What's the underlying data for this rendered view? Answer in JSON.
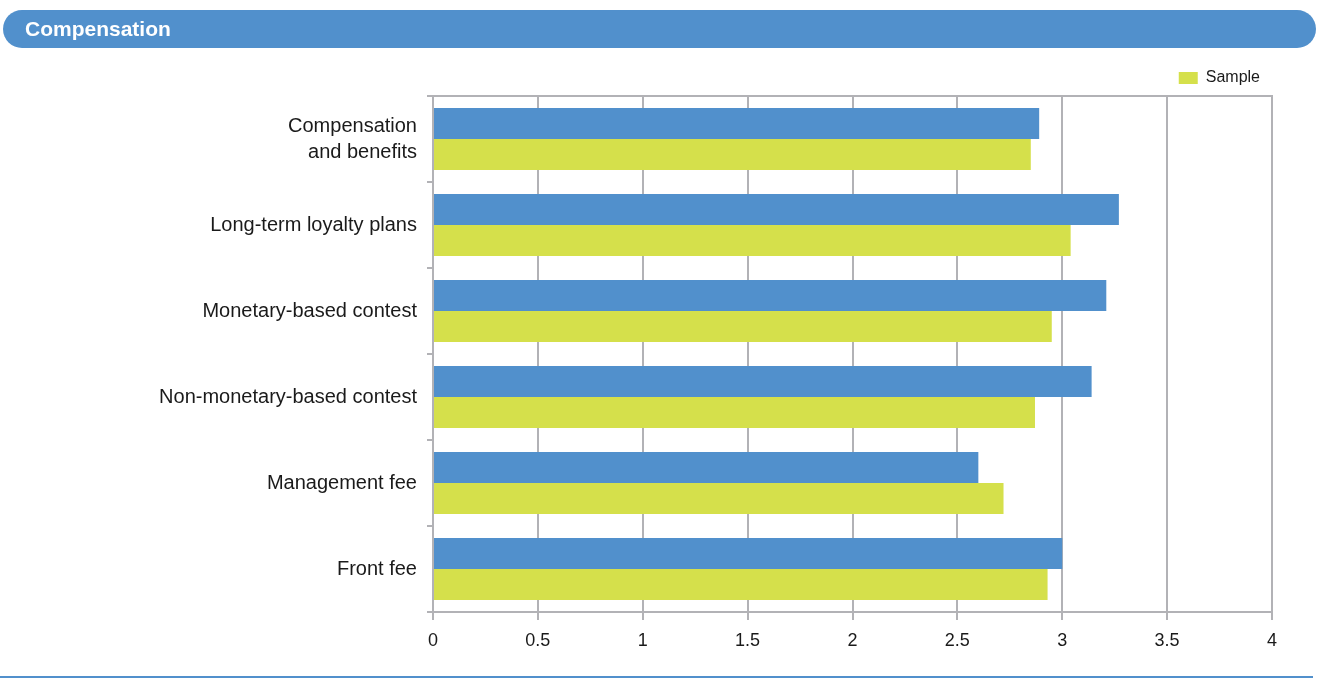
{
  "chart_data": {
    "type": "bar",
    "orientation": "horizontal",
    "title": "Compensation",
    "categories": [
      "Compensation and benefits",
      "Long-term loyalty plans",
      "Monetary-based contest",
      "Non-monetary-based contest",
      "Management fee",
      "Front fee"
    ],
    "series": [
      {
        "color": "#5190cc",
        "values": [
          2.89,
          3.27,
          3.21,
          3.14,
          2.6,
          3.0
        ]
      },
      {
        "name": "Sample",
        "color": "#d5e04b",
        "values": [
          2.85,
          3.04,
          2.95,
          2.87,
          2.72,
          2.93
        ]
      }
    ],
    "xlim": [
      0,
      4
    ],
    "xticks": [
      0,
      0.5,
      1,
      1.5,
      2,
      2.5,
      3,
      3.5,
      4
    ],
    "grid": "x",
    "legend": "top right"
  }
}
